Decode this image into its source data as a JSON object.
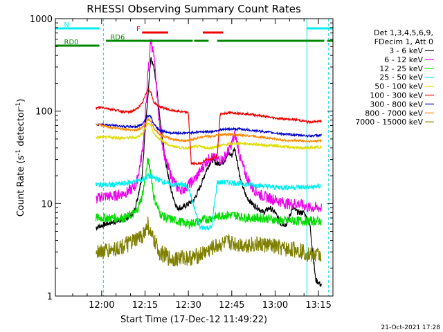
{
  "chart_data": {
    "type": "line",
    "title": "RHESSI Observing Summary Count Rates",
    "xlabel": "Start Time (17-Dec-12 11:49:22)",
    "ylabel": "Count Rate (s⁻¹ detector⁻¹)",
    "ylabel_parts": {
      "main": "Count Rate (s",
      "sup1": "-1",
      "mid": " detector",
      "sup2": "-1",
      "end": ")"
    },
    "yscale": "log",
    "ylim": [
      1,
      1000
    ],
    "xlim_minutes": [
      -16,
      80
    ],
    "x_ticks": [
      {
        "min": 0,
        "label": "12:00"
      },
      {
        "min": 15,
        "label": "12:15"
      },
      {
        "min": 30,
        "label": "12:30"
      },
      {
        "min": 45,
        "label": "12:45"
      },
      {
        "min": 60,
        "label": "13:00"
      },
      {
        "min": 75,
        "label": "13:15"
      }
    ],
    "y_ticks": [
      {
        "v": 1,
        "label": "1"
      },
      {
        "v": 10,
        "label": "10"
      },
      {
        "v": 100,
        "label": "100"
      },
      {
        "v": 1000,
        "label": "1000"
      }
    ],
    "legend_header": [
      "Det 1,3,4,5,6,9,",
      "FDecim 1, Att 0"
    ],
    "series": [
      {
        "name": "3 - 6 keV",
        "color": "#000000",
        "x": [
          -2,
          0,
          3,
          6,
          9,
          11,
          12,
          14,
          15,
          16,
          16.5,
          17,
          18,
          19,
          20,
          22,
          24,
          26,
          28,
          30,
          32,
          34,
          36,
          38,
          40,
          42,
          44,
          45,
          46,
          47,
          48,
          50,
          52,
          54,
          56,
          58,
          60,
          62,
          64,
          66,
          68,
          70,
          72,
          74,
          76
        ],
        "y": [
          5.5,
          5.8,
          6.2,
          6.5,
          7,
          8,
          10,
          20,
          60,
          150,
          250,
          370,
          300,
          180,
          90,
          30,
          14,
          9,
          9,
          10,
          11,
          15,
          22,
          30,
          27,
          28,
          35,
          33,
          40,
          28,
          18,
          12,
          10,
          9,
          8,
          9,
          8,
          6,
          6,
          9,
          8,
          8,
          6,
          1.5,
          1.3
        ]
      },
      {
        "name": "6 - 12 keV",
        "color": "#ee00ee",
        "x": [
          -2,
          0,
          4,
          8,
          10,
          12,
          14,
          15,
          16,
          17,
          18,
          19,
          20,
          22,
          24,
          26,
          28,
          30,
          32,
          34,
          36,
          38,
          40,
          42,
          44,
          45,
          46,
          47,
          48,
          50,
          52,
          54,
          56,
          60,
          64,
          68,
          72,
          76
        ],
        "y": [
          11,
          12,
          12,
          13,
          14,
          16,
          35,
          80,
          250,
          600,
          400,
          180,
          70,
          30,
          20,
          15,
          14,
          16,
          18,
          22,
          28,
          32,
          30,
          30,
          38,
          45,
          55,
          45,
          30,
          20,
          15,
          13,
          12,
          11,
          10,
          10,
          9,
          9
        ]
      },
      {
        "name": "12 - 25 keV",
        "color": "#00dd00",
        "x": [
          -2,
          0,
          4,
          8,
          10,
          12,
          14,
          15,
          16,
          17,
          18,
          20,
          22,
          26,
          30,
          34,
          38,
          42,
          46,
          50,
          56,
          62,
          68,
          72,
          76
        ],
        "y": [
          7,
          7,
          7,
          7,
          7.5,
          8,
          12,
          18,
          30,
          22,
          12,
          8,
          7,
          6.5,
          6,
          6.5,
          7,
          7.5,
          7.5,
          7,
          7,
          6.5,
          6.5,
          6.5,
          6.5
        ]
      },
      {
        "name": "25 - 50 keV",
        "color": "#00eeee",
        "x": [
          -2,
          0,
          4,
          8,
          10,
          12,
          14,
          15,
          16,
          18,
          20,
          24,
          28,
          30,
          34,
          38,
          40,
          44,
          48,
          52,
          56,
          60,
          64,
          68,
          72,
          76
        ],
        "y": [
          16,
          16,
          16,
          16.5,
          17,
          17.5,
          18,
          19,
          20,
          19,
          18,
          16,
          16,
          15,
          5.5,
          5.5,
          17,
          17,
          16.5,
          16,
          15.5,
          15,
          15,
          15,
          15,
          15.5
        ]
      },
      {
        "name": "50 - 100 keV",
        "color": "#dddd00",
        "x": [
          -2,
          0,
          4,
          8,
          12,
          14,
          15,
          16,
          17,
          18,
          20,
          24,
          28,
          30,
          34,
          36,
          38,
          40,
          44,
          48,
          52,
          56,
          60,
          64,
          68,
          72,
          76
        ],
        "y": [
          52,
          52,
          52,
          51,
          52,
          57,
          65,
          75,
          70,
          58,
          50,
          42,
          40,
          40,
          42,
          40,
          40,
          42,
          44,
          45,
          44,
          43,
          42,
          41,
          40,
          40,
          41
        ]
      },
      {
        "name": "100 - 300 keV",
        "color": "#ee0000",
        "x": [
          -2,
          0,
          4,
          8,
          10,
          12,
          14,
          15,
          16,
          17,
          18,
          20,
          24,
          28,
          30,
          31,
          34,
          36,
          38,
          40,
          41,
          44,
          48,
          52,
          56,
          60,
          64,
          68,
          72,
          76
        ],
        "y": [
          108,
          110,
          104,
          98,
          98,
          105,
          120,
          145,
          175,
          160,
          125,
          112,
          102,
          98,
          96,
          27,
          27,
          30,
          30,
          33,
          93,
          96,
          95,
          92,
          88,
          84,
          82,
          80,
          76,
          78
        ]
      },
      {
        "name": "300 - 800 keV",
        "color": "#0000cc",
        "x": [
          -2,
          0,
          4,
          8,
          12,
          14,
          15,
          16,
          17,
          18,
          20,
          24,
          28,
          30,
          34,
          36,
          38,
          40,
          44,
          48,
          52,
          56,
          60,
          64,
          68,
          72,
          76
        ],
        "y": [
          72,
          72,
          70,
          68,
          68,
          72,
          80,
          90,
          88,
          72,
          62,
          58,
          58,
          58,
          60,
          60,
          60,
          62,
          64,
          64,
          62,
          60,
          58,
          56,
          55,
          54,
          55
        ]
      },
      {
        "name": "800 - 7000 keV",
        "color": "#ff8800",
        "x": [
          -2,
          0,
          4,
          8,
          12,
          14,
          15,
          16,
          17,
          18,
          20,
          24,
          28,
          30,
          34,
          36,
          38,
          40,
          44,
          48,
          52,
          56,
          60,
          64,
          68,
          72,
          76
        ],
        "y": [
          72,
          70,
          66,
          64,
          62,
          66,
          72,
          82,
          78,
          66,
          56,
          50,
          48,
          48,
          52,
          54,
          53,
          55,
          56,
          55,
          54,
          52,
          50,
          48,
          48,
          47,
          48
        ]
      },
      {
        "name": "7000 - 15000 keV",
        "color": "#808000",
        "x": [
          -2,
          0,
          4,
          8,
          12,
          14,
          15,
          16,
          17,
          18,
          20,
          24,
          28,
          32,
          36,
          40,
          44,
          48,
          52,
          56,
          60,
          64,
          68,
          72,
          76
        ],
        "y": [
          3.2,
          3,
          3.2,
          3.5,
          4,
          4.5,
          5,
          6,
          4.5,
          4,
          3,
          2.5,
          2.6,
          2.6,
          3,
          3.5,
          3.8,
          3.6,
          3.6,
          3.6,
          3.4,
          3.2,
          3.2,
          2.8,
          2.8
        ]
      }
    ],
    "flags": [
      {
        "label": "N",
        "color": "#00eeee",
        "segments": [
          [
            -16,
            -0.8
          ],
          [
            71,
            80
          ]
        ]
      },
      {
        "label": "F",
        "color": "#ee0000",
        "segments": [
          [
            14,
            23
          ],
          [
            35,
            42
          ]
        ]
      },
      {
        "label": "RD0",
        "color": "#008800",
        "segments": [
          [
            -16,
            -0.8
          ]
        ]
      },
      {
        "label": "RD6",
        "color": "#008800",
        "segments": [
          [
            1.5,
            31.5
          ],
          [
            32,
            37
          ],
          [
            40,
            77
          ],
          [
            78,
            80
          ]
        ]
      }
    ],
    "footer": "21-Oct-2021 17:28"
  }
}
